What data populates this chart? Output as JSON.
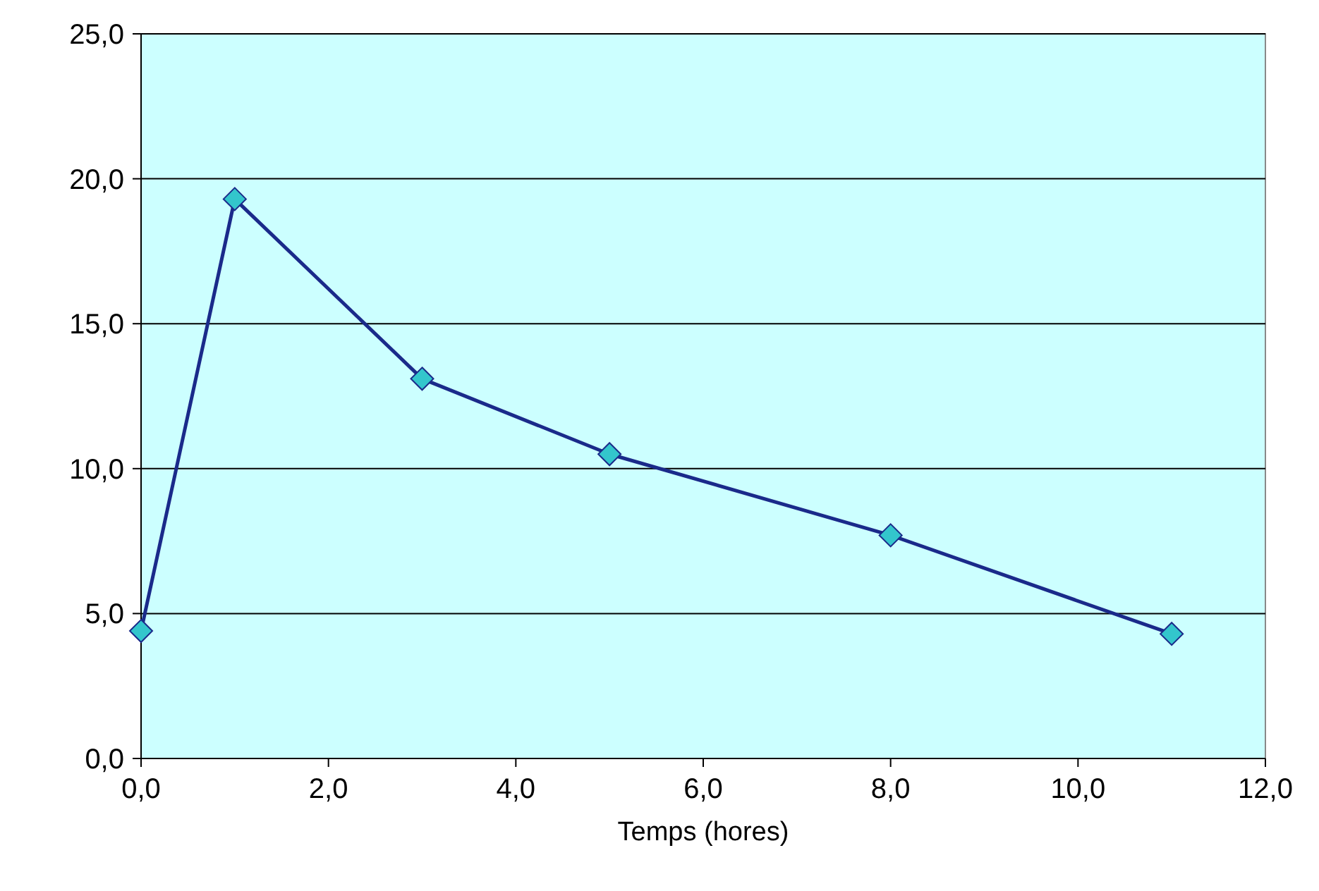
{
  "chart_data": {
    "type": "line",
    "xlabel": "Temps (hores)",
    "x": [
      0,
      1,
      3,
      5,
      8,
      11
    ],
    "series": [
      {
        "color": "#1a2a8a",
        "values": [
          4.4,
          19.3,
          13.1,
          10.5,
          7.7,
          4.3
        ]
      }
    ],
    "xlim": [
      0,
      12
    ],
    "xticks": [
      {
        "value": 0,
        "label": "0,0"
      },
      {
        "value": 2,
        "label": "2,0"
      },
      {
        "value": 4,
        "label": "4,0"
      },
      {
        "value": 6,
        "label": "6,0"
      },
      {
        "value": 8,
        "label": "8,0"
      },
      {
        "value": 10,
        "label": "10,0"
      },
      {
        "value": 12,
        "label": "12,0"
      }
    ],
    "ylim": [
      0,
      25
    ],
    "yticks": [
      {
        "value": 0,
        "label": "0,0"
      },
      {
        "value": 5,
        "label": "5,0"
      },
      {
        "value": 10,
        "label": "10,0"
      },
      {
        "value": 15,
        "label": "15,0"
      },
      {
        "value": 20,
        "label": "20,0"
      },
      {
        "value": 25,
        "label": "25,0"
      }
    ],
    "grid": "y",
    "marker": "diamond",
    "line_style": "solid"
  }
}
